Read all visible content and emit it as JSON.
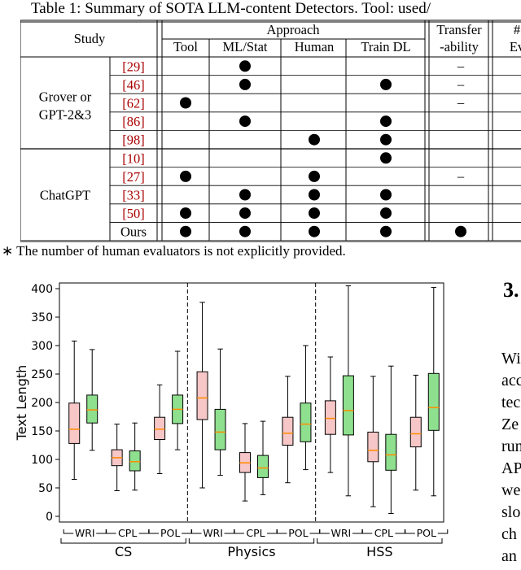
{
  "caption": "Table 1: Summary of SOTA LLM-content Detectors. Tool: used/",
  "table": {
    "header_study": "Study",
    "header_approach": "Approach",
    "approach_cols": [
      "Tool",
      "ML/Stat",
      "Human",
      "Train DL"
    ],
    "header_transfer_1": "Transfer",
    "header_transfer_2": "-ability",
    "header_eval_1": "#",
    "header_eval_2": "Ev",
    "groups": [
      {
        "name_line1": "Grover or",
        "name_line2": "GPT-2&3",
        "rows": [
          {
            "ref": "29",
            "marks": [
              false,
              true,
              false,
              false
            ],
            "transfer": "–"
          },
          {
            "ref": "46",
            "marks": [
              false,
              true,
              false,
              true
            ],
            "transfer": "–"
          },
          {
            "ref": "62",
            "marks": [
              true,
              false,
              false,
              false
            ],
            "transfer": "–"
          },
          {
            "ref": "86",
            "marks": [
              false,
              true,
              false,
              true
            ],
            "transfer": ""
          },
          {
            "ref": "98",
            "marks": [
              false,
              false,
              true,
              true
            ],
            "transfer": ""
          }
        ]
      },
      {
        "name_line1": "ChatGPT",
        "name_line2": "",
        "rows": [
          {
            "ref": "10",
            "marks": [
              false,
              false,
              false,
              true
            ],
            "transfer": ""
          },
          {
            "ref": "27",
            "marks": [
              true,
              false,
              true,
              false
            ],
            "transfer": "–"
          },
          {
            "ref": "33",
            "marks": [
              false,
              true,
              true,
              true
            ],
            "transfer": ""
          },
          {
            "ref": "50",
            "marks": [
              true,
              true,
              true,
              true
            ],
            "transfer": ""
          },
          {
            "ref": "Ours",
            "marks": [
              true,
              true,
              true,
              true
            ],
            "transfer": "dot"
          }
        ]
      }
    ]
  },
  "footnote": "∗ The number of human evaluators is not explicitly provided.",
  "section_number": "3.",
  "body_lines": [
    "Wi",
    "acc",
    "tec",
    "Ze",
    "run",
    "AP",
    "we",
    "slo",
    "ch",
    "an"
  ],
  "chart_data": {
    "type": "boxplot",
    "ylabel": "Text Length",
    "ylim": [
      -10,
      410
    ],
    "yticks": [
      0,
      50,
      100,
      150,
      200,
      250,
      300,
      350,
      400
    ],
    "groups": [
      "CS",
      "Physics",
      "HSS"
    ],
    "subcategories": [
      "WRI",
      "CPL",
      "POL"
    ],
    "colors": {
      "human": "#f7c6c6",
      "llm": "#8ee08e",
      "median": "#ff8c00"
    },
    "boxes": [
      {
        "group": "CS",
        "sub": "WRI",
        "kind": "human",
        "min": 65,
        "q1": 128,
        "median": 153,
        "q3": 199,
        "max": 308
      },
      {
        "group": "CS",
        "sub": "WRI",
        "kind": "llm",
        "min": 116,
        "q1": 164,
        "median": 187,
        "q3": 213,
        "max": 293
      },
      {
        "group": "CS",
        "sub": "CPL",
        "kind": "human",
        "min": 45,
        "q1": 89,
        "median": 103,
        "q3": 117,
        "max": 162
      },
      {
        "group": "CS",
        "sub": "CPL",
        "kind": "llm",
        "min": 46,
        "q1": 80,
        "median": 96,
        "q3": 115,
        "max": 164
      },
      {
        "group": "CS",
        "sub": "POL",
        "kind": "human",
        "min": 75,
        "q1": 135,
        "median": 153,
        "q3": 174,
        "max": 231
      },
      {
        "group": "CS",
        "sub": "POL",
        "kind": "llm",
        "min": 117,
        "q1": 163,
        "median": 188,
        "q3": 213,
        "max": 290
      },
      {
        "group": "Physics",
        "sub": "WRI",
        "kind": "human",
        "min": 50,
        "q1": 170,
        "median": 208,
        "q3": 254,
        "max": 376
      },
      {
        "group": "Physics",
        "sub": "WRI",
        "kind": "llm",
        "min": 72,
        "q1": 117,
        "median": 148,
        "q3": 188,
        "max": 294
      },
      {
        "group": "Physics",
        "sub": "CPL",
        "kind": "human",
        "min": 27,
        "q1": 77,
        "median": 94,
        "q3": 112,
        "max": 163
      },
      {
        "group": "Physics",
        "sub": "CPL",
        "kind": "llm",
        "min": 38,
        "q1": 68,
        "median": 85,
        "q3": 107,
        "max": 167
      },
      {
        "group": "Physics",
        "sub": "POL",
        "kind": "human",
        "min": 59,
        "q1": 125,
        "median": 146,
        "q3": 174,
        "max": 246
      },
      {
        "group": "Physics",
        "sub": "POL",
        "kind": "llm",
        "min": 82,
        "q1": 131,
        "median": 162,
        "q3": 199,
        "max": 300
      },
      {
        "group": "HSS",
        "sub": "WRI",
        "kind": "human",
        "min": 77,
        "q1": 144,
        "median": 172,
        "q3": 203,
        "max": 280
      },
      {
        "group": "HSS",
        "sub": "WRI",
        "kind": "llm",
        "min": 36,
        "q1": 143,
        "median": 186,
        "q3": 247,
        "max": 405
      },
      {
        "group": "HSS",
        "sub": "CPL",
        "kind": "human",
        "min": 17,
        "q1": 96,
        "median": 116,
        "q3": 148,
        "max": 246
      },
      {
        "group": "HSS",
        "sub": "CPL",
        "kind": "llm",
        "min": 5,
        "q1": 81,
        "median": 108,
        "q3": 144,
        "max": 264
      },
      {
        "group": "HSS",
        "sub": "POL",
        "kind": "human",
        "min": 46,
        "q1": 122,
        "median": 145,
        "q3": 174,
        "max": 248
      },
      {
        "group": "HSS",
        "sub": "POL",
        "kind": "llm",
        "min": 36,
        "q1": 151,
        "median": 191,
        "q3": 251,
        "max": 402
      }
    ]
  }
}
